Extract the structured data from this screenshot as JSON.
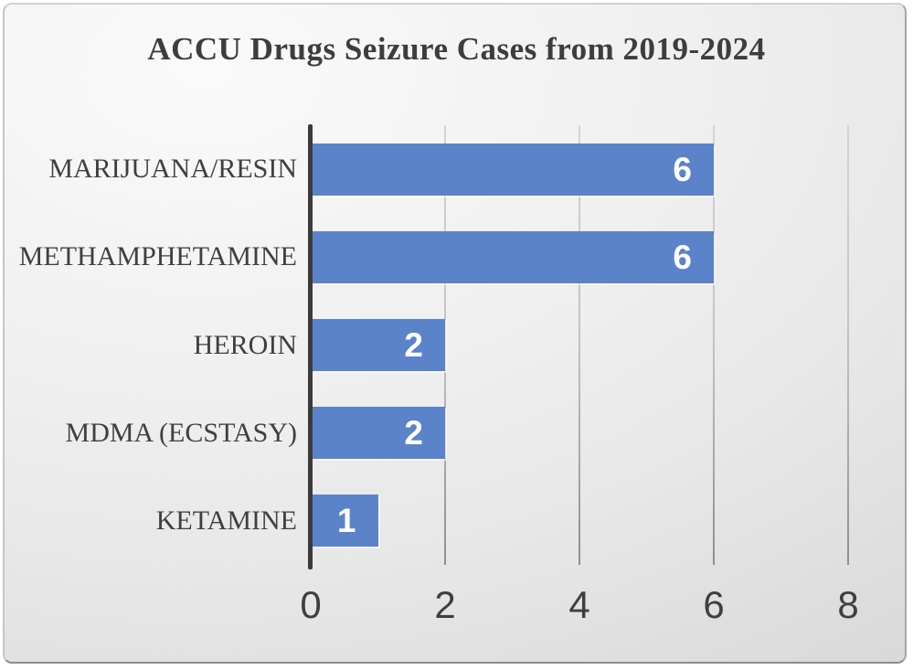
{
  "chart_data": {
    "type": "bar",
    "orientation": "horizontal",
    "title": "ACCU Drugs Seizure Cases from 2019-2024",
    "categories": [
      "MARIJUANA/RESIN",
      "METHAMPHETAMINE",
      "HEROIN",
      "MDMA (ECSTASY)",
      "KETAMINE"
    ],
    "values": [
      6,
      6,
      2,
      2,
      1
    ],
    "data_labels": [
      "6",
      "6",
      "2",
      "2",
      "1"
    ],
    "x_ticks": [
      "0",
      "2",
      "4",
      "6",
      "8"
    ],
    "xlim": [
      0,
      8
    ],
    "grid": true,
    "legend": false,
    "colors": {
      "bar": "#5b83ca",
      "bar_label": "#ffffff",
      "title_text": "#3d3d3d",
      "category_text": "#3f3f3f",
      "axis_tick_text": "#3f3f3f",
      "axis_line": "#3b3b3b",
      "gridline_top": "#d4d4d4",
      "gridline_bottom": "#8f8f8f",
      "frame_background": "#ececec"
    }
  }
}
